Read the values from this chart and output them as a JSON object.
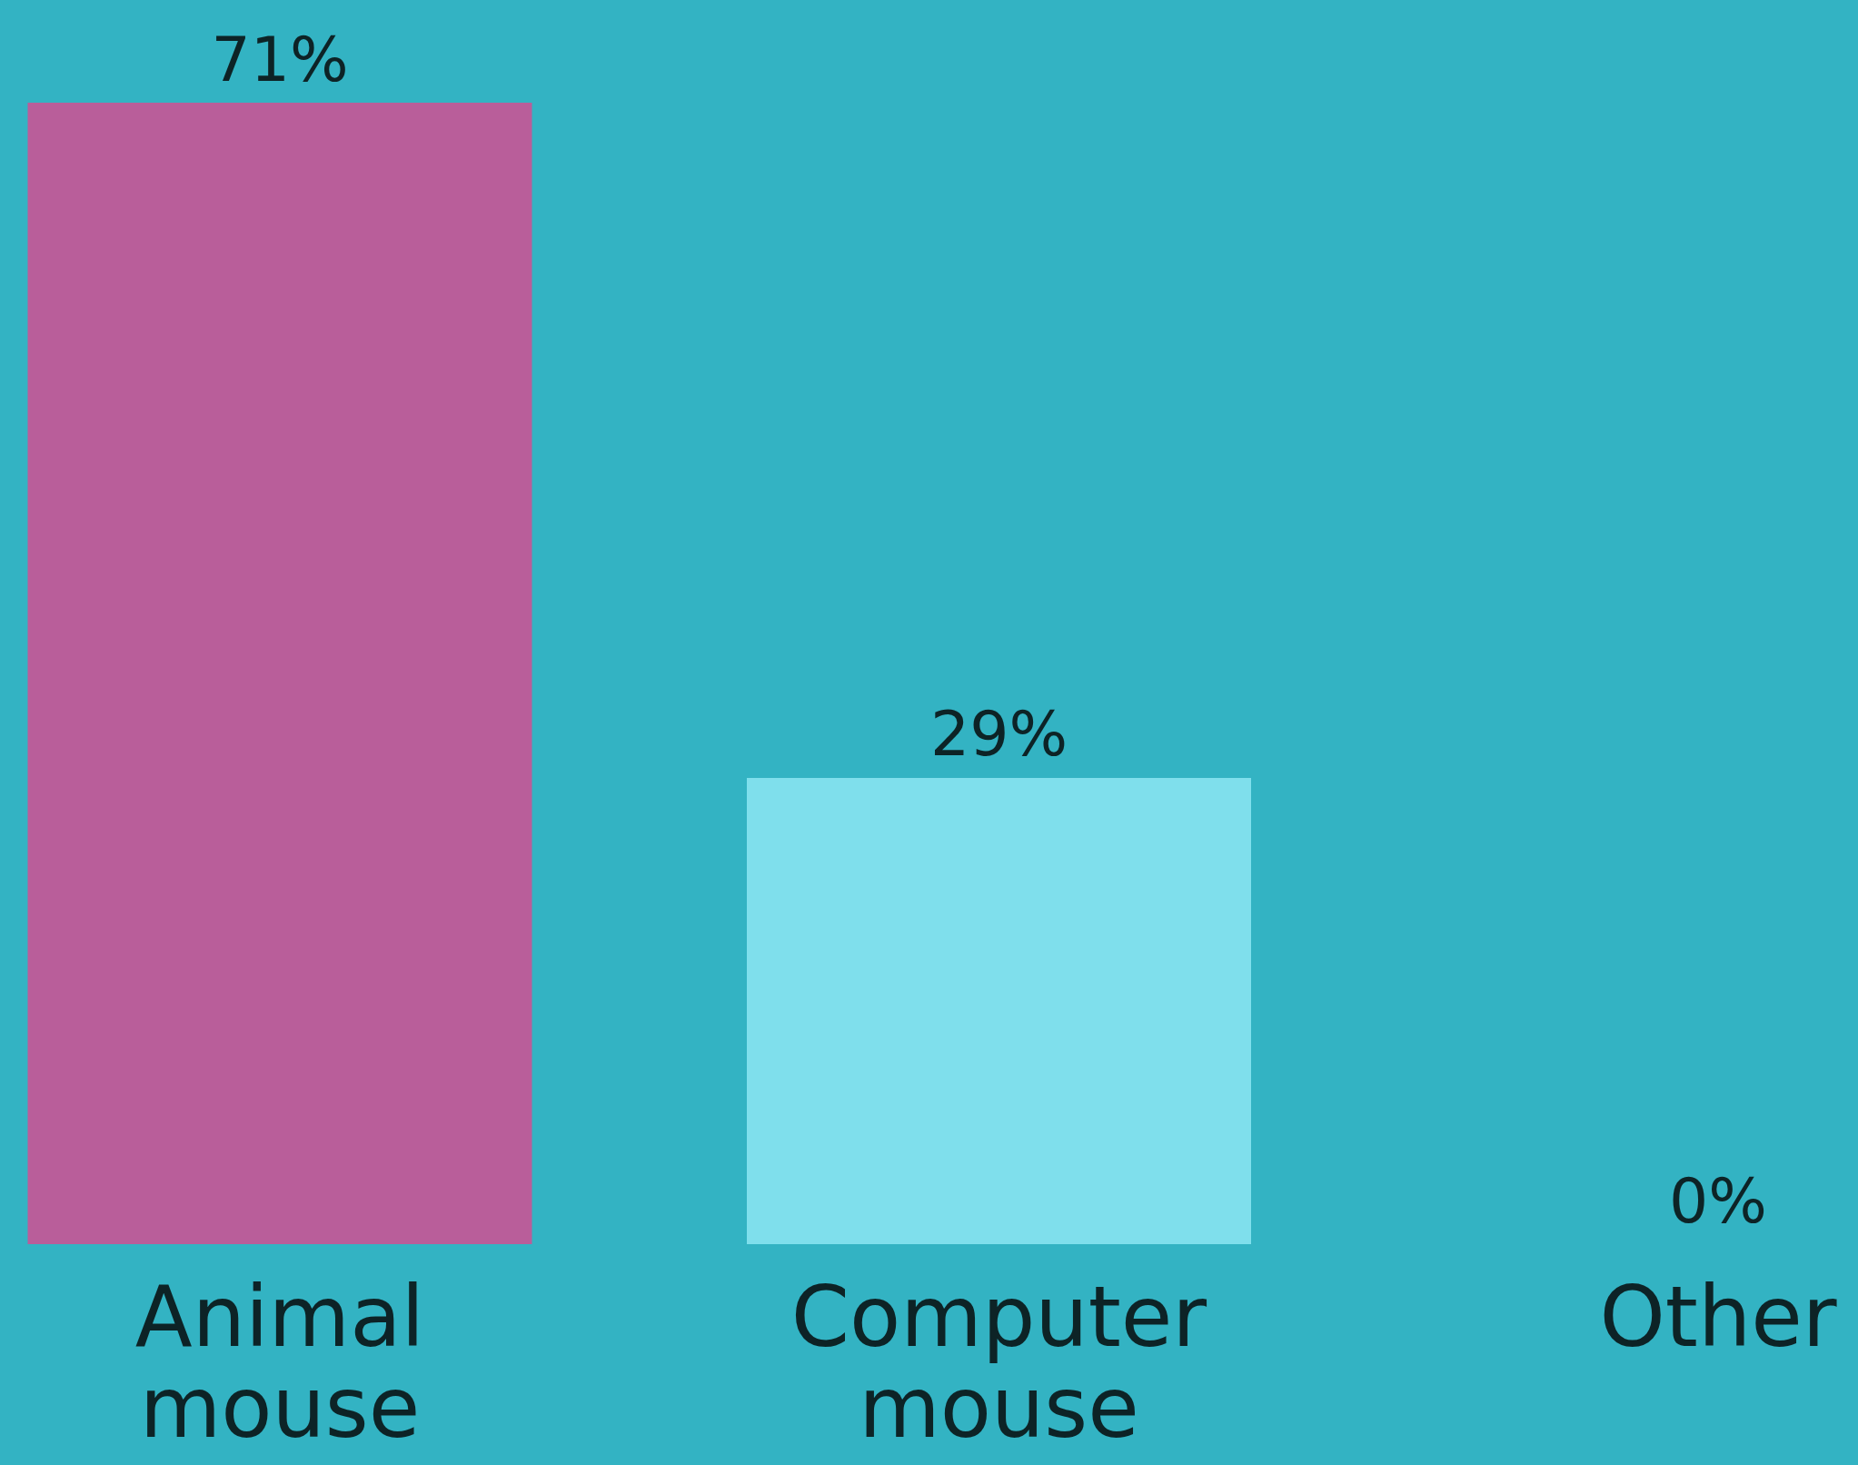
{
  "chart_data": {
    "type": "bar",
    "categories": [
      "Animal mouse",
      "Computer mouse",
      "Other"
    ],
    "values": [
      71,
      29,
      0
    ],
    "colors": [
      "#b95e9a",
      "#7fdfec",
      "#7fdfec"
    ],
    "data_labels": true,
    "value_labels": [
      "71%",
      "29%",
      "0%"
    ]
  }
}
